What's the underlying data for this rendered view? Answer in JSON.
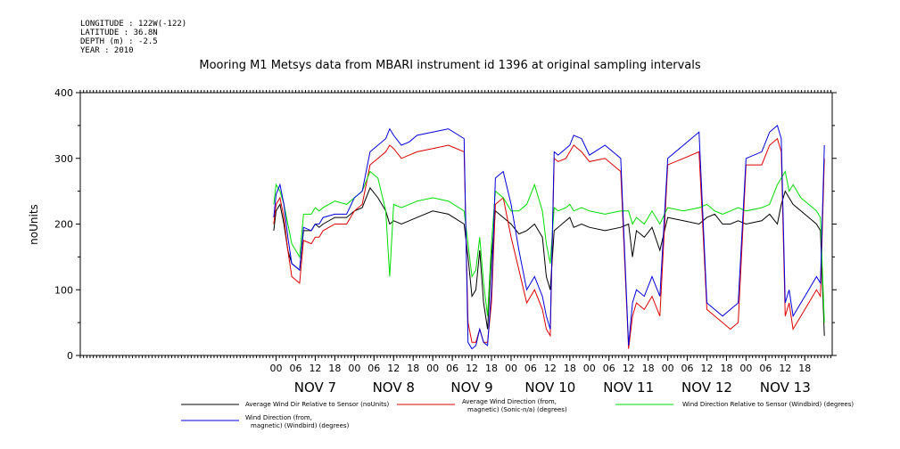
{
  "header": {
    "longitude": "LONGITUDE : 122W(-122)",
    "latitude": "LATITUDE : 36.8N",
    "depth": "DEPTH (m) : -2.5",
    "year": "YEAR : 2010"
  },
  "chart_data": {
    "type": "line",
    "title": "Mooring M1 Metsys data from MBARI instrument id 1396 at original sampling intervals",
    "ylabel": "noUnits",
    "xlabel": "",
    "ylim": [
      0,
      400
    ],
    "yticks": [
      0,
      100,
      200,
      300,
      400
    ],
    "xlim": [
      -2.5,
      7.1
    ],
    "hour_ticks": [
      {
        "t": 0.0,
        "label": "00"
      },
      {
        "t": 0.25,
        "label": "06"
      },
      {
        "t": 0.5,
        "label": "12"
      },
      {
        "t": 0.75,
        "label": "18"
      },
      {
        "t": 1.0,
        "label": "00"
      },
      {
        "t": 1.25,
        "label": "06"
      },
      {
        "t": 1.5,
        "label": "12"
      },
      {
        "t": 1.75,
        "label": "18"
      },
      {
        "t": 2.0,
        "label": "00"
      },
      {
        "t": 2.25,
        "label": "06"
      },
      {
        "t": 2.5,
        "label": "12"
      },
      {
        "t": 2.75,
        "label": "18"
      },
      {
        "t": 3.0,
        "label": "00"
      },
      {
        "t": 3.25,
        "label": "06"
      },
      {
        "t": 3.5,
        "label": "12"
      },
      {
        "t": 3.75,
        "label": "18"
      },
      {
        "t": 4.0,
        "label": "00"
      },
      {
        "t": 4.25,
        "label": "06"
      },
      {
        "t": 4.5,
        "label": "12"
      },
      {
        "t": 4.75,
        "label": "18"
      },
      {
        "t": 5.0,
        "label": "00"
      },
      {
        "t": 5.25,
        "label": "06"
      },
      {
        "t": 5.5,
        "label": "12"
      },
      {
        "t": 5.75,
        "label": "18"
      },
      {
        "t": 6.0,
        "label": "00"
      },
      {
        "t": 6.25,
        "label": "06"
      },
      {
        "t": 6.5,
        "label": "12"
      },
      {
        "t": 6.75,
        "label": "18"
      }
    ],
    "day_labels": [
      {
        "t": 0.5,
        "label": "NOV 7"
      },
      {
        "t": 1.5,
        "label": "NOV 8"
      },
      {
        "t": 2.5,
        "label": "NOV 9"
      },
      {
        "t": 3.5,
        "label": "NOV 10"
      },
      {
        "t": 4.5,
        "label": "NOV 11"
      },
      {
        "t": 5.5,
        "label": "NOV 12"
      },
      {
        "t": 6.5,
        "label": "NOV 13"
      }
    ],
    "series": [
      {
        "name": "Average Wind Dir Relative to Sensor (noUnits)",
        "color": "#000000",
        "x": [
          -0.03,
          0.0,
          0.05,
          0.1,
          0.15,
          0.2,
          0.3,
          0.35,
          0.45,
          0.5,
          0.55,
          0.6,
          0.75,
          0.9,
          1.0,
          1.1,
          1.2,
          1.3,
          1.4,
          1.45,
          1.5,
          1.6,
          1.7,
          1.8,
          2.0,
          2.2,
          2.4,
          2.45,
          2.5,
          2.55,
          2.6,
          2.65,
          2.7,
          2.75,
          2.8,
          2.9,
          3.0,
          3.1,
          3.2,
          3.3,
          3.4,
          3.45,
          3.5,
          3.55,
          3.6,
          3.7,
          3.75,
          3.8,
          3.9,
          4.0,
          4.2,
          4.4,
          4.5,
          4.55,
          4.6,
          4.7,
          4.8,
          4.9,
          5.0,
          5.2,
          5.4,
          5.5,
          5.6,
          5.7,
          5.8,
          5.9,
          6.0,
          6.2,
          6.3,
          6.4,
          6.45,
          6.5,
          6.55,
          6.6,
          6.7,
          6.8,
          6.9,
          6.95,
          7.0
        ],
        "y": [
          190,
          220,
          230,
          200,
          160,
          140,
          130,
          190,
          190,
          200,
          195,
          200,
          210,
          210,
          220,
          225,
          255,
          240,
          220,
          200,
          205,
          200,
          205,
          210,
          220,
          215,
          200,
          150,
          90,
          100,
          160,
          80,
          40,
          150,
          220,
          210,
          200,
          185,
          190,
          200,
          180,
          120,
          100,
          190,
          195,
          205,
          210,
          195,
          200,
          195,
          190,
          195,
          200,
          150,
          190,
          180,
          195,
          160,
          210,
          205,
          200,
          210,
          215,
          200,
          200,
          205,
          200,
          205,
          215,
          200,
          230,
          250,
          240,
          230,
          220,
          210,
          200,
          190,
          30
        ]
      },
      {
        "name": "Average Wind Direction (from, magnetic) (Sonic-n/a) (degrees)",
        "color": "#dd0000",
        "x": [
          -0.03,
          0.0,
          0.05,
          0.1,
          0.15,
          0.2,
          0.3,
          0.35,
          0.45,
          0.5,
          0.55,
          0.6,
          0.75,
          0.9,
          1.0,
          1.1,
          1.2,
          1.3,
          1.4,
          1.45,
          1.5,
          1.6,
          1.7,
          1.8,
          2.0,
          2.2,
          2.4,
          2.45,
          2.5,
          2.55,
          2.6,
          2.65,
          2.7,
          2.75,
          2.8,
          2.9,
          3.0,
          3.1,
          3.2,
          3.3,
          3.4,
          3.45,
          3.5,
          3.55,
          3.6,
          3.7,
          3.75,
          3.8,
          3.9,
          4.0,
          4.2,
          4.4,
          4.5,
          4.55,
          4.6,
          4.7,
          4.8,
          4.9,
          5.0,
          5.2,
          5.4,
          5.5,
          5.6,
          5.7,
          5.8,
          5.9,
          6.0,
          6.2,
          6.3,
          6.4,
          6.45,
          6.5,
          6.55,
          6.6,
          6.7,
          6.8,
          6.9,
          6.95,
          7.0
        ],
        "y": [
          200,
          230,
          240,
          210,
          160,
          120,
          110,
          175,
          170,
          180,
          180,
          190,
          200,
          200,
          220,
          230,
          290,
          300,
          310,
          320,
          315,
          300,
          305,
          310,
          315,
          320,
          310,
          50,
          20,
          20,
          40,
          20,
          20,
          80,
          230,
          240,
          180,
          130,
          80,
          100,
          70,
          40,
          30,
          300,
          295,
          300,
          310,
          320,
          310,
          295,
          300,
          280,
          10,
          60,
          80,
          70,
          90,
          60,
          290,
          300,
          310,
          70,
          60,
          50,
          40,
          50,
          290,
          290,
          320,
          330,
          310,
          60,
          80,
          40,
          60,
          80,
          100,
          90,
          300
        ]
      },
      {
        "name": "Wind Direction Relative to Sensor (Windbird) (degrees)",
        "color": "#00dd00",
        "x": [
          -0.03,
          0.0,
          0.05,
          0.1,
          0.15,
          0.2,
          0.3,
          0.35,
          0.45,
          0.5,
          0.55,
          0.6,
          0.75,
          0.9,
          1.0,
          1.1,
          1.2,
          1.3,
          1.4,
          1.45,
          1.5,
          1.6,
          1.7,
          1.8,
          2.0,
          2.2,
          2.4,
          2.45,
          2.5,
          2.55,
          2.6,
          2.65,
          2.7,
          2.75,
          2.8,
          2.9,
          3.0,
          3.1,
          3.2,
          3.3,
          3.4,
          3.45,
          3.5,
          3.55,
          3.6,
          3.7,
          3.75,
          3.8,
          3.9,
          4.0,
          4.2,
          4.4,
          4.5,
          4.55,
          4.6,
          4.7,
          4.8,
          4.9,
          5.0,
          5.2,
          5.4,
          5.5,
          5.6,
          5.7,
          5.8,
          5.9,
          6.0,
          6.2,
          6.3,
          6.4,
          6.45,
          6.5,
          6.55,
          6.6,
          6.7,
          6.8,
          6.9,
          6.95,
          7.0
        ],
        "y": [
          230,
          260,
          250,
          230,
          200,
          170,
          150,
          215,
          215,
          225,
          220,
          225,
          235,
          230,
          240,
          250,
          280,
          270,
          220,
          120,
          230,
          225,
          230,
          235,
          240,
          235,
          220,
          170,
          120,
          130,
          180,
          110,
          60,
          170,
          250,
          240,
          220,
          220,
          230,
          260,
          220,
          170,
          140,
          225,
          220,
          225,
          230,
          220,
          225,
          220,
          215,
          220,
          220,
          200,
          210,
          200,
          220,
          200,
          225,
          220,
          225,
          230,
          220,
          215,
          220,
          225,
          220,
          225,
          230,
          260,
          270,
          280,
          250,
          260,
          240,
          230,
          220,
          210,
          50
        ]
      },
      {
        "name": "Wind Direction (from, magnetic) (Windbird) (degrees)",
        "color": "#0000dd",
        "x": [
          -0.03,
          0.0,
          0.05,
          0.1,
          0.15,
          0.2,
          0.3,
          0.35,
          0.45,
          0.5,
          0.55,
          0.6,
          0.75,
          0.9,
          1.0,
          1.1,
          1.2,
          1.3,
          1.4,
          1.45,
          1.5,
          1.6,
          1.7,
          1.8,
          2.0,
          2.2,
          2.4,
          2.45,
          2.5,
          2.55,
          2.6,
          2.65,
          2.7,
          2.75,
          2.8,
          2.9,
          3.0,
          3.1,
          3.2,
          3.3,
          3.4,
          3.45,
          3.5,
          3.55,
          3.6,
          3.7,
          3.75,
          3.8,
          3.9,
          4.0,
          4.2,
          4.4,
          4.5,
          4.55,
          4.6,
          4.7,
          4.8,
          4.9,
          5.0,
          5.2,
          5.4,
          5.5,
          5.6,
          5.7,
          5.8,
          5.9,
          6.0,
          6.2,
          6.3,
          6.4,
          6.45,
          6.5,
          6.55,
          6.6,
          6.7,
          6.8,
          6.9,
          6.95,
          7.0
        ],
        "y": [
          210,
          245,
          260,
          230,
          180,
          140,
          130,
          195,
          190,
          200,
          200,
          210,
          215,
          215,
          240,
          250,
          310,
          320,
          330,
          345,
          335,
          320,
          325,
          335,
          340,
          345,
          330,
          20,
          10,
          15,
          40,
          20,
          15,
          100,
          270,
          280,
          230,
          160,
          100,
          120,
          90,
          60,
          40,
          310,
          305,
          315,
          320,
          335,
          330,
          305,
          320,
          300,
          15,
          80,
          100,
          90,
          120,
          90,
          300,
          320,
          340,
          80,
          70,
          60,
          70,
          80,
          300,
          310,
          340,
          350,
          330,
          80,
          100,
          60,
          80,
          100,
          120,
          110,
          320
        ]
      }
    ]
  },
  "legend": [
    {
      "label_line1": "Average Wind Dir Relative to Sensor (noUnits)",
      "label_line2": ""
    },
    {
      "label_line1": "Average Wind Direction (from,",
      "label_line2": "magnetic) (Sonic-n/a) (degrees)"
    },
    {
      "label_line1": "Wind Direction Relative to Sensor (Windbird) (degrees)",
      "label_line2": ""
    },
    {
      "label_line1": "Wind Direction (from,",
      "label_line2": "magnetic) (Windbird) (degrees)"
    }
  ]
}
